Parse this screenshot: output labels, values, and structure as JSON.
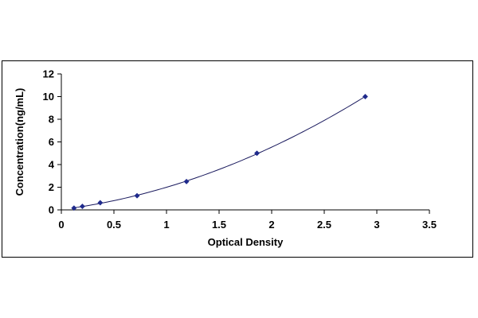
{
  "chart_data": {
    "type": "scatter",
    "title": "",
    "xlabel": "Optical Density",
    "ylabel": "Concentration(ng/mL)",
    "xlim": [
      0,
      3.5
    ],
    "ylim": [
      0,
      12
    ],
    "x_ticks": [
      "0",
      "0.5",
      "1",
      "1.5",
      "2",
      "2.5",
      "3",
      "3.5"
    ],
    "y_ticks": [
      "0",
      "2",
      "4",
      "6",
      "8",
      "10",
      "12"
    ],
    "grid": false,
    "legend": "none",
    "trendline": "polynomial fit curve through points",
    "series": [
      {
        "x": [
          0.12,
          0.2,
          0.37,
          0.72,
          1.19,
          1.86,
          2.89
        ],
        "y": [
          0.16,
          0.31,
          0.63,
          1.25,
          2.5,
          5,
          10
        ],
        "color": "#1f2a8c",
        "line_color": "#1a1a5e",
        "marker": "diamond"
      }
    ]
  }
}
